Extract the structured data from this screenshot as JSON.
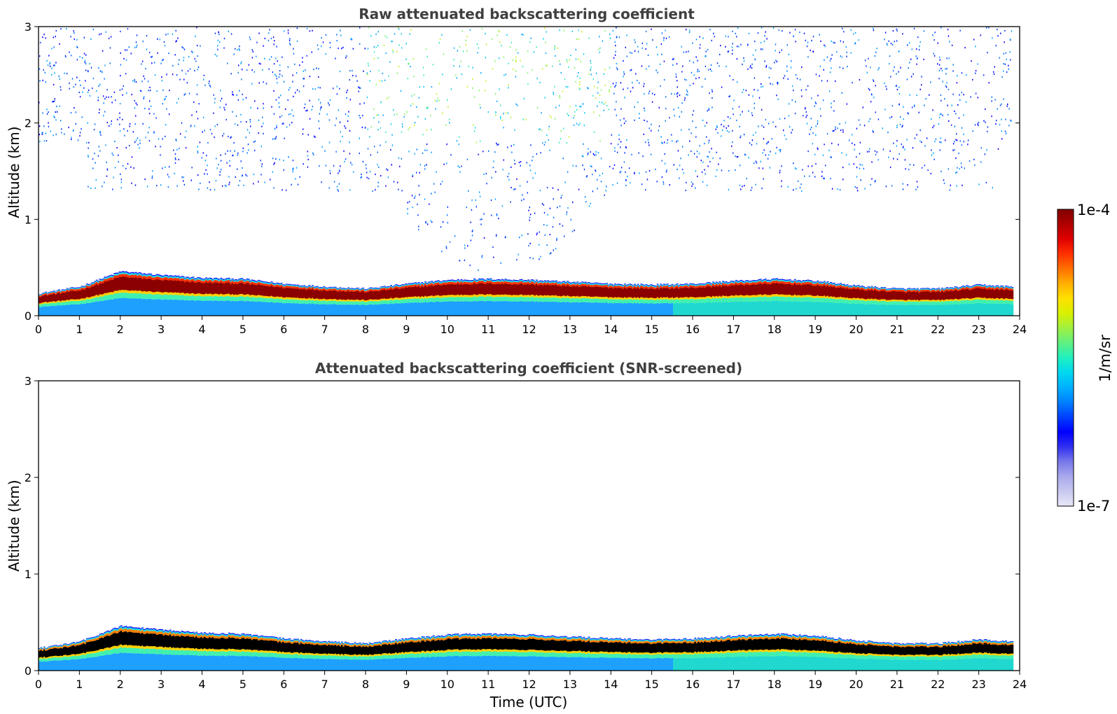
{
  "chart_data": [
    {
      "type": "heatmap",
      "title": "Raw attenuated backscattering coefficient",
      "xlabel": "",
      "ylabel": "Altitude (km)",
      "xlim": [
        0,
        24
      ],
      "ylim": [
        0,
        3
      ],
      "x_ticks": [
        "0",
        "1",
        "2",
        "3",
        "4",
        "5",
        "6",
        "7",
        "8",
        "9",
        "10",
        "11",
        "12",
        "13",
        "14",
        "15",
        "16",
        "17",
        "18",
        "19",
        "20",
        "21",
        "22",
        "23",
        "24"
      ],
      "y_ticks": [
        "0",
        "1",
        "2",
        "3"
      ],
      "layer_top_km": {
        "time_utc": [
          0,
          1,
          2,
          3,
          4,
          5,
          6,
          7,
          8,
          9,
          10,
          11,
          12,
          13,
          14,
          15,
          16,
          17,
          18,
          19,
          20,
          21,
          22,
          23,
          23.8
        ],
        "altitude_km": [
          0.23,
          0.3,
          0.46,
          0.42,
          0.39,
          0.38,
          0.33,
          0.3,
          0.28,
          0.33,
          0.37,
          0.38,
          0.37,
          0.35,
          0.33,
          0.32,
          0.33,
          0.36,
          0.38,
          0.36,
          0.31,
          0.28,
          0.28,
          0.32,
          0.3
        ]
      },
      "noise_above_layer": true
    },
    {
      "type": "heatmap",
      "title": "Attenuated backscattering coefficient (SNR-screened)",
      "xlabel": "Time (UTC)",
      "ylabel": "Altitude (km)",
      "xlim": [
        0,
        24
      ],
      "ylim": [
        0,
        3
      ],
      "x_ticks": [
        "0",
        "1",
        "2",
        "3",
        "4",
        "5",
        "6",
        "7",
        "8",
        "9",
        "10",
        "11",
        "12",
        "13",
        "14",
        "15",
        "16",
        "17",
        "18",
        "19",
        "20",
        "21",
        "22",
        "23",
        "24"
      ],
      "y_ticks": [
        "0",
        "1",
        "2",
        "3"
      ],
      "layer_top_km": {
        "time_utc": [
          0,
          1,
          2,
          3,
          4,
          5,
          6,
          7,
          8,
          9,
          10,
          11,
          12,
          13,
          14,
          15,
          16,
          17,
          18,
          19,
          20,
          21,
          22,
          23,
          23.8
        ],
        "altitude_km": [
          0.23,
          0.3,
          0.46,
          0.42,
          0.39,
          0.38,
          0.33,
          0.3,
          0.28,
          0.33,
          0.37,
          0.38,
          0.37,
          0.35,
          0.33,
          0.32,
          0.33,
          0.36,
          0.38,
          0.36,
          0.31,
          0.28,
          0.28,
          0.32,
          0.3
        ]
      },
      "noise_above_layer": false
    }
  ],
  "colorbar": {
    "max_label": "1e-4",
    "min_label": "1e-7",
    "label": "1/m/sr",
    "colors": [
      "#e8e8f8",
      "#c8c8f0",
      "#a8a8ec",
      "#7878ea",
      "#3030f0",
      "#0000ff",
      "#0040ff",
      "#0080ff",
      "#00b0ff",
      "#00d8f0",
      "#20f0c0",
      "#60f080",
      "#a0f040",
      "#d8f000",
      "#ffe000",
      "#ffb000",
      "#ff7000",
      "#ff3000",
      "#e00000",
      "#b00000",
      "#800000"
    ]
  }
}
